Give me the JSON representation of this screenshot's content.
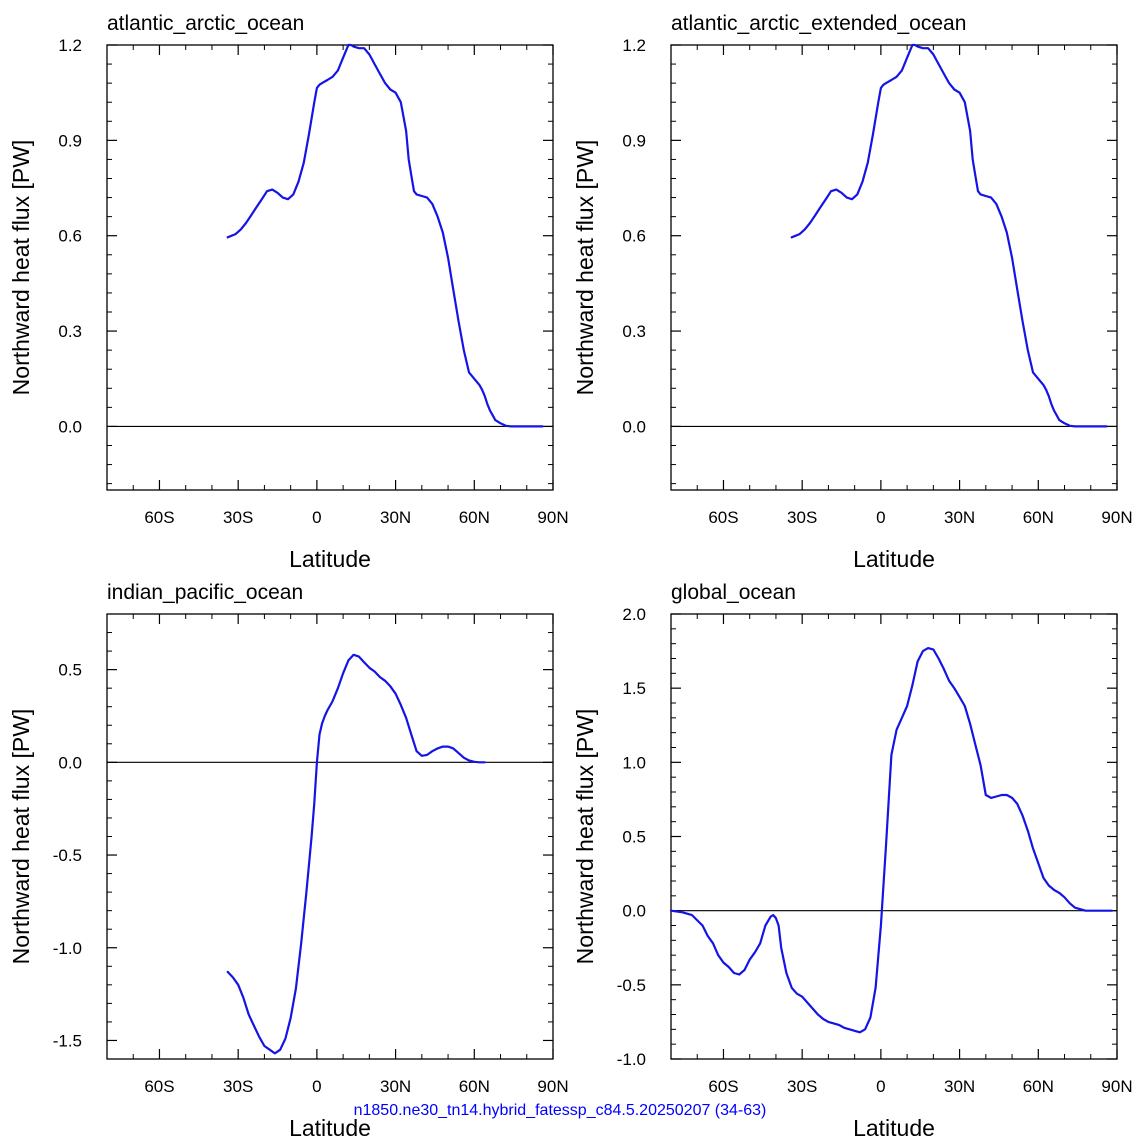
{
  "footnote": "n1850.ne30_tn14.hybrid_fatessp_c84.5.20250207 (34-63)",
  "colors": {
    "series": "#1414e6",
    "axis": "#000000",
    "zero_line": "#000000"
  },
  "chart_data": [
    {
      "type": "line",
      "title": "atlantic_arctic_ocean",
      "xlabel": "Latitude",
      "ylabel": "Northward heat flux [PW]",
      "xlim": [
        -80,
        90
      ],
      "ylim": [
        -0.2,
        1.2
      ],
      "xticks": [
        -60,
        -30,
        0,
        30,
        60,
        90
      ],
      "xtick_labels": [
        "60S",
        "30S",
        "0",
        "30N",
        "60N",
        "90N"
      ],
      "yticks": [
        0.0,
        0.3,
        0.6,
        0.9,
        1.2
      ],
      "ytick_labels": [
        "0.0",
        "0.3",
        "0.6",
        "0.9",
        "1.2"
      ],
      "zero_line": true,
      "series": [
        {
          "x": [
            -34,
            -31,
            -29,
            -27,
            -25,
            -23,
            -21,
            -19,
            -17,
            -15,
            -13,
            -11,
            -9,
            -7,
            -5,
            -3,
            -1,
            0,
            1,
            2,
            4,
            6,
            8,
            10,
            11,
            12,
            13,
            14,
            16,
            18,
            20,
            22,
            24,
            26,
            28,
            30,
            32,
            34,
            35,
            36,
            37,
            38,
            40,
            42,
            44,
            46,
            48,
            50,
            52,
            54,
            56,
            58,
            60,
            62,
            63,
            64,
            65,
            66,
            67,
            68,
            70,
            72,
            74,
            76,
            78,
            80,
            82,
            86
          ],
          "y": [
            0.595,
            0.605,
            0.62,
            0.64,
            0.665,
            0.69,
            0.715,
            0.74,
            0.745,
            0.735,
            0.72,
            0.715,
            0.73,
            0.77,
            0.83,
            0.92,
            1.02,
            1.065,
            1.075,
            1.08,
            1.09,
            1.1,
            1.12,
            1.16,
            1.18,
            1.2,
            1.2,
            1.195,
            1.19,
            1.19,
            1.17,
            1.14,
            1.11,
            1.08,
            1.06,
            1.05,
            1.02,
            0.93,
            0.84,
            0.79,
            0.74,
            0.73,
            0.725,
            0.72,
            0.7,
            0.66,
            0.61,
            0.53,
            0.43,
            0.33,
            0.24,
            0.17,
            0.15,
            0.13,
            0.115,
            0.095,
            0.07,
            0.05,
            0.035,
            0.02,
            0.01,
            0.002,
            0.0,
            0.0,
            0.0,
            0.0,
            0.0,
            0.0
          ]
        }
      ]
    },
    {
      "type": "line",
      "title": "atlantic_arctic_extended_ocean",
      "xlabel": "Latitude",
      "ylabel": "Northward heat flux [PW]",
      "xlim": [
        -80,
        90
      ],
      "ylim": [
        -0.2,
        1.2
      ],
      "xticks": [
        -60,
        -30,
        0,
        30,
        60,
        90
      ],
      "xtick_labels": [
        "60S",
        "30S",
        "0",
        "30N",
        "60N",
        "90N"
      ],
      "yticks": [
        0.0,
        0.3,
        0.6,
        0.9,
        1.2
      ],
      "ytick_labels": [
        "0.0",
        "0.3",
        "0.6",
        "0.9",
        "1.2"
      ],
      "zero_line": true,
      "series": [
        {
          "x": [
            -34,
            -31,
            -29,
            -27,
            -25,
            -23,
            -21,
            -19,
            -17,
            -15,
            -13,
            -11,
            -9,
            -7,
            -5,
            -3,
            -1,
            0,
            1,
            2,
            4,
            6,
            8,
            10,
            11,
            12,
            13,
            14,
            16,
            18,
            20,
            22,
            24,
            26,
            28,
            30,
            32,
            34,
            35,
            36,
            37,
            38,
            40,
            42,
            44,
            46,
            48,
            50,
            52,
            54,
            56,
            58,
            60,
            62,
            63,
            64,
            65,
            66,
            67,
            68,
            70,
            72,
            74,
            76,
            78,
            80,
            82,
            86
          ],
          "y": [
            0.595,
            0.605,
            0.62,
            0.64,
            0.665,
            0.69,
            0.715,
            0.74,
            0.745,
            0.735,
            0.72,
            0.715,
            0.73,
            0.77,
            0.83,
            0.92,
            1.02,
            1.065,
            1.075,
            1.08,
            1.09,
            1.1,
            1.12,
            1.16,
            1.18,
            1.2,
            1.2,
            1.195,
            1.19,
            1.19,
            1.17,
            1.14,
            1.11,
            1.08,
            1.06,
            1.05,
            1.02,
            0.93,
            0.84,
            0.79,
            0.74,
            0.73,
            0.725,
            0.72,
            0.7,
            0.66,
            0.61,
            0.53,
            0.43,
            0.33,
            0.24,
            0.17,
            0.15,
            0.13,
            0.115,
            0.095,
            0.07,
            0.05,
            0.035,
            0.02,
            0.01,
            0.002,
            0.0,
            0.0,
            0.0,
            0.0,
            0.0,
            0.0
          ]
        }
      ]
    },
    {
      "type": "line",
      "title": "indian_pacific_ocean",
      "xlabel": "Latitude",
      "ylabel": "Northward heat flux [PW]",
      "xlim": [
        -80,
        90
      ],
      "ylim": [
        -1.6,
        0.8
      ],
      "xticks": [
        -60,
        -30,
        0,
        30,
        60,
        90
      ],
      "xtick_labels": [
        "60S",
        "30S",
        "0",
        "30N",
        "60N",
        "90N"
      ],
      "yticks": [
        -1.5,
        -1.0,
        -0.5,
        0.0,
        0.5
      ],
      "ytick_labels": [
        "-1.5",
        "-1.0",
        "-0.5",
        "0.0",
        "0.5"
      ],
      "zero_line": true,
      "series": [
        {
          "x": [
            -34,
            -32,
            -30,
            -28,
            -26,
            -24,
            -22,
            -20,
            -18,
            -16,
            -14,
            -12,
            -10,
            -8,
            -6,
            -4,
            -2,
            -1,
            0,
            1,
            2,
            3,
            4,
            6,
            8,
            10,
            12,
            14,
            16,
            18,
            20,
            22,
            24,
            26,
            28,
            30,
            32,
            34,
            36,
            38,
            40,
            42,
            44,
            46,
            48,
            50,
            52,
            54,
            56,
            58,
            60,
            62,
            64
          ],
          "y": [
            -1.13,
            -1.16,
            -1.2,
            -1.27,
            -1.36,
            -1.42,
            -1.48,
            -1.53,
            -1.55,
            -1.57,
            -1.55,
            -1.49,
            -1.38,
            -1.22,
            -0.98,
            -0.7,
            -0.4,
            -0.22,
            0.0,
            0.15,
            0.21,
            0.25,
            0.28,
            0.33,
            0.4,
            0.48,
            0.55,
            0.58,
            0.57,
            0.54,
            0.51,
            0.49,
            0.46,
            0.44,
            0.41,
            0.37,
            0.31,
            0.24,
            0.15,
            0.06,
            0.035,
            0.04,
            0.06,
            0.075,
            0.085,
            0.085,
            0.075,
            0.05,
            0.025,
            0.01,
            0.003,
            0.0,
            0.0
          ]
        }
      ]
    },
    {
      "type": "line",
      "title": "global_ocean",
      "xlabel": "Latitude",
      "ylabel": "Northward heat flux [PW]",
      "xlim": [
        -80,
        90
      ],
      "ylim": [
        -1.0,
        2.0
      ],
      "xticks": [
        -60,
        -30,
        0,
        30,
        60,
        90
      ],
      "xtick_labels": [
        "60S",
        "30S",
        "0",
        "30N",
        "60N",
        "90N"
      ],
      "yticks": [
        -1.0,
        -0.5,
        0.0,
        0.5,
        1.0,
        1.5,
        2.0
      ],
      "ytick_labels": [
        "-1.0",
        "-0.5",
        "0.0",
        "0.5",
        "1.0",
        "1.5",
        "2.0"
      ],
      "zero_line": true,
      "series": [
        {
          "x": [
            -80,
            -76,
            -72,
            -68,
            -66,
            -64,
            -62,
            -60,
            -58,
            -56,
            -54,
            -52,
            -50,
            -48,
            -46,
            -44,
            -42,
            -41,
            -40,
            -39,
            -38,
            -36,
            -34,
            -32,
            -30,
            -28,
            -26,
            -24,
            -22,
            -20,
            -18,
            -16,
            -14,
            -12,
            -10,
            -8,
            -6,
            -4,
            -2,
            0,
            2,
            4,
            6,
            8,
            10,
            12,
            14,
            16,
            18,
            20,
            22,
            24,
            26,
            28,
            30,
            32,
            34,
            36,
            38,
            40,
            42,
            44,
            46,
            48,
            50,
            52,
            54,
            56,
            58,
            60,
            62,
            64,
            66,
            68,
            70,
            72,
            74,
            76,
            78,
            80,
            84,
            88
          ],
          "y": [
            0.0,
            -0.01,
            -0.03,
            -0.1,
            -0.17,
            -0.22,
            -0.3,
            -0.35,
            -0.38,
            -0.42,
            -0.43,
            -0.4,
            -0.33,
            -0.28,
            -0.22,
            -0.1,
            -0.04,
            -0.03,
            -0.05,
            -0.1,
            -0.25,
            -0.42,
            -0.52,
            -0.56,
            -0.58,
            -0.62,
            -0.66,
            -0.7,
            -0.73,
            -0.75,
            -0.76,
            -0.77,
            -0.79,
            -0.8,
            -0.81,
            -0.82,
            -0.8,
            -0.72,
            -0.52,
            -0.1,
            0.45,
            1.05,
            1.22,
            1.3,
            1.38,
            1.52,
            1.68,
            1.75,
            1.77,
            1.76,
            1.7,
            1.63,
            1.55,
            1.5,
            1.44,
            1.38,
            1.26,
            1.12,
            0.98,
            0.78,
            0.76,
            0.77,
            0.78,
            0.78,
            0.76,
            0.72,
            0.64,
            0.54,
            0.42,
            0.32,
            0.22,
            0.17,
            0.14,
            0.12,
            0.09,
            0.05,
            0.02,
            0.01,
            0.0,
            0.0,
            0.0,
            0.0
          ]
        }
      ]
    }
  ]
}
